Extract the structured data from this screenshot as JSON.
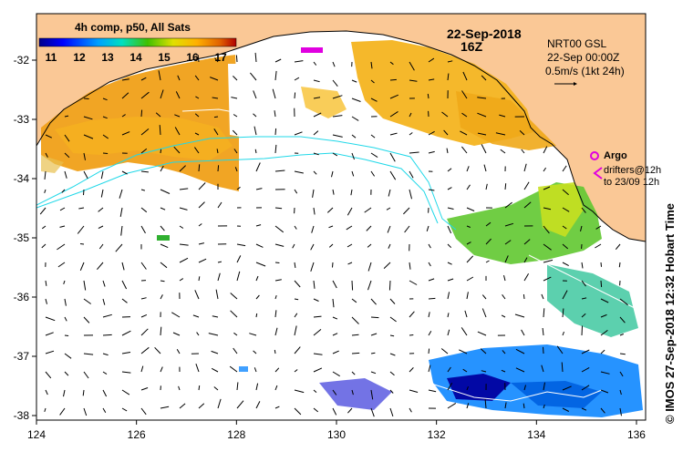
{
  "map": {
    "colorbar": {
      "title": "4h comp, p50, All Sats",
      "labels": [
        "11",
        "12",
        "13",
        "14",
        "15",
        "16",
        "17"
      ],
      "colors": [
        "#00008c",
        "#0000ff",
        "#00a0ff",
        "#00e0c0",
        "#40c000",
        "#c8e000",
        "#ffe000",
        "#f0a000",
        "#e06000",
        "#b00000"
      ]
    },
    "date_title": "22-Sep-2018",
    "time_title": "16Z",
    "overlay": {
      "line1": "NRT00 GSL",
      "line2": "22-Sep 00:00Z",
      "line3": "0.5m/s (1kt 24h)"
    },
    "legend": {
      "argo_label": "Argo",
      "drifters_line1": "drifters@12h",
      "drifters_line2": "to 23/09 12h",
      "argo_color": "#e000e0"
    },
    "credit": "© IMOS 27-Sep-2018 12:32 Hobart Time",
    "x_ticks": [
      "124",
      "126",
      "128",
      "130",
      "132",
      "134",
      "136"
    ],
    "y_ticks": [
      "-32",
      "-33",
      "-34",
      "-35",
      "-36",
      "-37",
      "-38"
    ],
    "land_color": "#fac896",
    "contour_color": "#20d8e8"
  }
}
